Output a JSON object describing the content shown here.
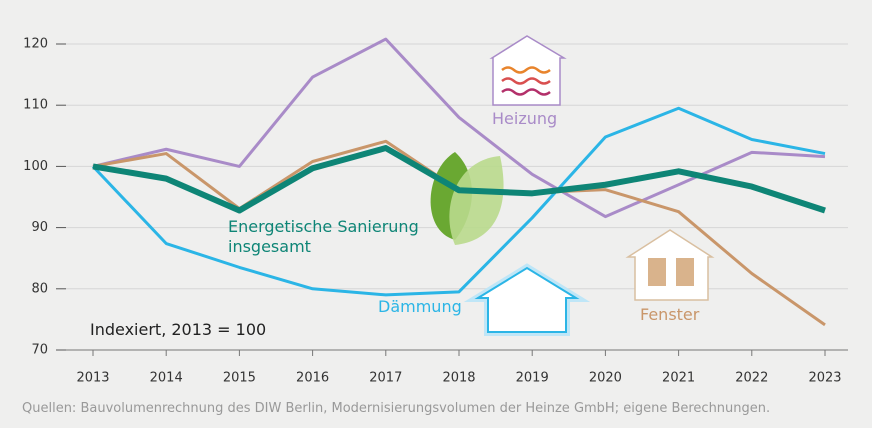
{
  "chart_data": {
    "type": "line",
    "categories": [
      "2013",
      "2014",
      "2015",
      "2016",
      "2017",
      "2018",
      "2019",
      "2020",
      "2021",
      "2022",
      "2023"
    ],
    "series": [
      {
        "name": "Heizung",
        "color": "#a98bc8",
        "values": [
          100,
          102.8,
          100,
          114.6,
          120.8,
          108,
          98.7,
          91.8,
          97,
          102.3,
          101.6
        ]
      },
      {
        "name": "Dämmung",
        "color": "#2bb5e6",
        "values": [
          100,
          87.4,
          83.5,
          80,
          79,
          79.5,
          91.6,
          104.8,
          109.5,
          104.4,
          102.1
        ]
      },
      {
        "name": "Fenster",
        "color": "#c9966a",
        "values": [
          100,
          102.1,
          93.1,
          100.8,
          104.1,
          96.1,
          95.7,
          96.2,
          92.6,
          82.5,
          74.1
        ]
      },
      {
        "name": "Energetische Sanierung insgesamt",
        "color": "#0e8576",
        "values": [
          100,
          98,
          92.8,
          99.7,
          103,
          96.1,
          95.6,
          97,
          99.2,
          96.7,
          92.8
        ]
      }
    ],
    "ylim": [
      70,
      120
    ],
    "yticks": [
      70,
      80,
      90,
      100,
      110,
      120
    ],
    "grid": true,
    "annotation": "Indexiert, 2013 = 100",
    "source": "Quellen: Bauvolumenrechnung des DIW Berlin, Modernisierungsvolumen der Heinze GmbH; eigene Berechnungen."
  }
}
